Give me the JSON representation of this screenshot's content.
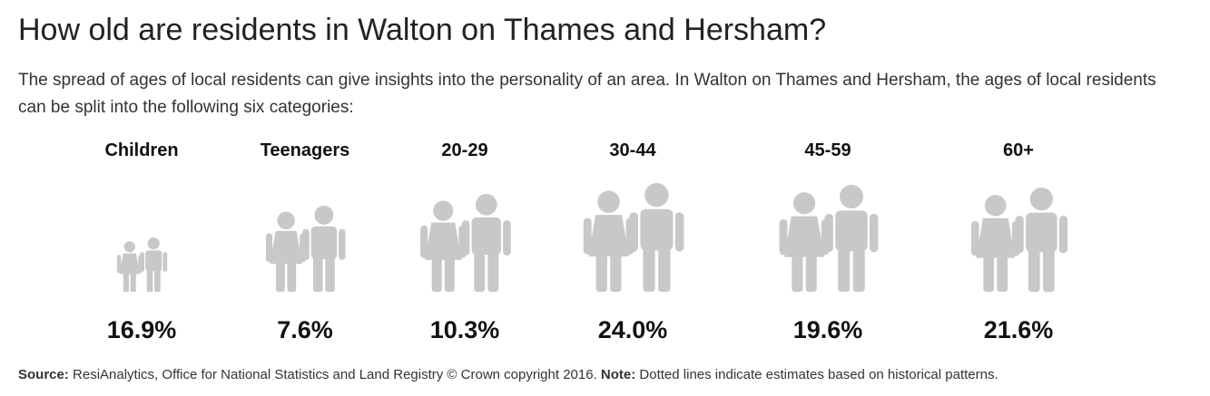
{
  "header": {
    "title": "How old are residents in Walton on Thames and Hersham?",
    "description": "The spread of ages of local residents can give insights into the personality of an area. In Walton on Thames and Hersham, the ages of local residents can be split into the following six categories:"
  },
  "groups": [
    {
      "label": "Children",
      "value": "16.9%"
    },
    {
      "label": "Teenagers",
      "value": "7.6%"
    },
    {
      "label": "20-29",
      "value": "10.3%"
    },
    {
      "label": "30-44",
      "value": "24.0%"
    },
    {
      "label": "45-59",
      "value": "19.6%"
    },
    {
      "label": "60+",
      "value": "21.6%"
    }
  ],
  "footer": {
    "source_label": "Source:",
    "source_text": "ResiAnalytics, Office for National Statistics and Land Registry © Crown copyright 2016.",
    "note_label": "Note:",
    "note_text": "Dotted lines indicate estimates based on historical patterns."
  }
}
